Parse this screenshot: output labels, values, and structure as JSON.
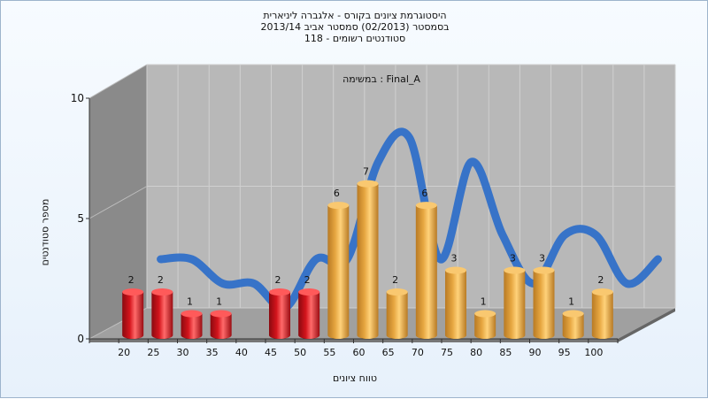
{
  "chart_data": {
    "type": "bar",
    "title_lines": [
      "היסטוגרמת ציונים בקורס - אלגברה ליניארית",
      "בסמסטר  (02/2013)  סמסטר אביב 2013/14",
      "סטודנטים רשומים - 118"
    ],
    "annotation": "במשימה : Final_A",
    "xlabel": "טווח ציונים",
    "ylabel": "מספר סטודנטים",
    "categories": [
      "20",
      "25",
      "30",
      "35",
      "40",
      "45",
      "50",
      "55",
      "60",
      "65",
      "70",
      "75",
      "80",
      "85",
      "90",
      "95",
      "100"
    ],
    "values": [
      2,
      2,
      1,
      1,
      0,
      2,
      2,
      6,
      7,
      2,
      6,
      3,
      1,
      3,
      3,
      1,
      2
    ],
    "bar_colors": [
      "red",
      "red",
      "red",
      "red",
      "red",
      "red",
      "red",
      "gold",
      "gold",
      "gold",
      "gold",
      "gold",
      "gold",
      "gold",
      "gold",
      "gold",
      "gold"
    ],
    "y_ticks": [
      "0",
      "5",
      "10"
    ],
    "ylim": [
      0,
      10
    ],
    "colors": {
      "red": "#d4141c",
      "gold": "#e6a640",
      "curve": "#2f6fc8",
      "plot_back": "#b8b8b8",
      "wall": "#8a8a8a",
      "floor": "#a0a0a0"
    }
  }
}
